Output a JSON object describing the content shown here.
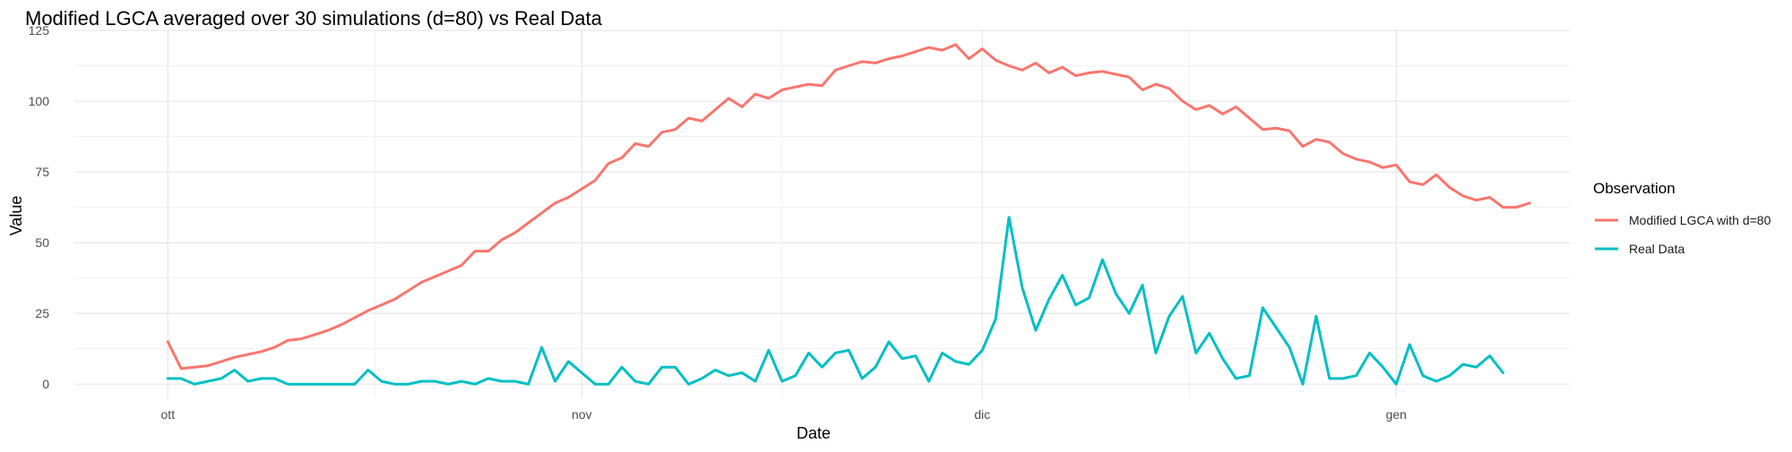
{
  "chart_data": {
    "type": "line",
    "title": "Modified LGCA averaged over 30 simulations (d=80) vs Real Data",
    "xlabel": "Date",
    "ylabel": "Value",
    "x_type": "date",
    "x_start": "2023-10-01",
    "x_end": "2024-01-08",
    "xlim": [
      "2023-09-24",
      "2024-01-14"
    ],
    "ylim": [
      -5,
      125
    ],
    "x_ticks": [
      {
        "label": "ott",
        "date": "2023-10-01"
      },
      {
        "label": "nov",
        "date": "2023-11-01"
      },
      {
        "label": "dic",
        "date": "2023-12-01"
      },
      {
        "label": "gen",
        "date": "2024-01-01"
      }
    ],
    "y_ticks": [
      0,
      25,
      50,
      75,
      100,
      125
    ],
    "grid": true,
    "legend": {
      "title": "Observation",
      "position": "right"
    },
    "series": [
      {
        "name": "Modified LGCA with d=80",
        "color": "#F8766D",
        "values": [
          15,
          5.5,
          6,
          6.5,
          8,
          9.5,
          10.5,
          11.5,
          13,
          15.5,
          16,
          17.5,
          19,
          21,
          23.5,
          26,
          28,
          30,
          33,
          36,
          38,
          40,
          42,
          47,
          47,
          51,
          53.5,
          57,
          60.5,
          64,
          66,
          69,
          72,
          78,
          80,
          85,
          84,
          89,
          90,
          94,
          93,
          97,
          101,
          98,
          102.5,
          101,
          104,
          105,
          106,
          105.5,
          111,
          112.5,
          114,
          113.5,
          115,
          116,
          117.5,
          119,
          118,
          120,
          115,
          118.5,
          114.5,
          112.5,
          111,
          113.5,
          110,
          112,
          109,
          110,
          110.5,
          109.5,
          108.5,
          104,
          106,
          104.5,
          100,
          97,
          98.5,
          95.5,
          98,
          94,
          90,
          90.5,
          89.5,
          84,
          86.5,
          85.5,
          81.5,
          79.5,
          78.5,
          76.5,
          77.5,
          71.5,
          70.5,
          74,
          69.5,
          66.5,
          65,
          66,
          62.5,
          62.5,
          64
        ]
      },
      {
        "name": "Real Data",
        "color": "#00BFC4",
        "values": [
          2,
          2,
          0,
          1,
          2,
          5,
          1,
          2,
          2,
          0,
          0,
          0,
          0,
          0,
          0,
          5,
          1,
          0,
          0,
          1,
          1,
          0,
          1,
          0,
          2,
          1,
          1,
          0,
          13,
          1,
          8,
          4,
          0,
          0,
          6,
          1,
          0,
          6,
          6,
          0,
          2,
          5,
          3,
          4,
          1,
          12,
          1,
          3,
          11,
          6,
          11,
          12,
          2,
          6,
          15,
          9,
          10,
          1,
          11,
          8,
          7,
          12,
          23,
          59,
          34,
          19,
          30,
          38.5,
          28,
          30.5,
          44,
          32,
          25,
          35,
          11,
          24,
          31,
          11,
          18,
          9,
          2,
          3,
          27,
          20,
          13,
          0,
          24,
          2,
          2,
          3,
          11,
          6,
          0,
          14,
          3,
          1,
          3,
          7,
          6,
          10,
          4
        ]
      }
    ]
  }
}
